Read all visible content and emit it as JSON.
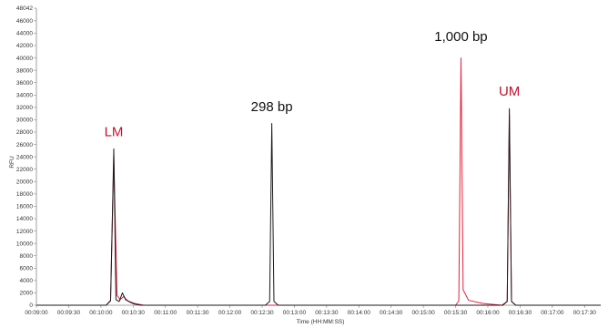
{
  "chart_data": {
    "type": "line",
    "xlabel": "Time (HH:MM:SS)",
    "ylabel": "RFU",
    "xlim": [
      "00:09:00",
      "00:17:45"
    ],
    "ylim": [
      0,
      48042
    ],
    "y_ticks": [
      0,
      2000,
      4000,
      6000,
      8000,
      10000,
      12000,
      14000,
      16000,
      18000,
      20000,
      22000,
      24000,
      26000,
      28000,
      30000,
      32000,
      34000,
      36000,
      38000,
      40000,
      42000,
      44000,
      46000,
      48042
    ],
    "x_ticks": [
      "00:09:00",
      "00:09:30",
      "00:10:00",
      "00:10:30",
      "00:11:00",
      "00:11:30",
      "00:12:00",
      "00:12:30",
      "00:13:00",
      "00:13:30",
      "00:14:00",
      "00:14:30",
      "00:15:00",
      "00:15:30",
      "00:16:00",
      "00:16:30",
      "00:17:00",
      "00:17:30"
    ],
    "grid": false,
    "colors": {
      "black_trace": "#1a1a1a",
      "red_trace": "#e8203a",
      "label_red": "#c8102e",
      "label_black": "#111111"
    },
    "series": [
      {
        "color": "black",
        "x": [
          "00:09:00",
          "00:10:05",
          "00:10:09",
          "00:10:12",
          "00:10:14",
          "00:10:17",
          "00:10:20",
          "00:10:23",
          "00:10:27",
          "00:10:31",
          "00:10:37",
          "00:12:33",
          "00:12:37",
          "00:12:39",
          "00:12:41",
          "00:12:45",
          "00:16:14",
          "00:16:18",
          "00:16:20",
          "00:16:22",
          "00:16:26",
          "00:17:45"
        ],
        "y": [
          0,
          0,
          800,
          25300,
          900,
          600,
          2000,
          900,
          500,
          200,
          0,
          0,
          600,
          29400,
          600,
          0,
          0,
          600,
          31800,
          600,
          0,
          0
        ]
      },
      {
        "color": "red",
        "x": [
          "00:09:00",
          "00:10:05",
          "00:10:09",
          "00:10:12",
          "00:10:15",
          "00:10:18",
          "00:10:21",
          "00:10:25",
          "00:10:31",
          "00:10:40",
          "00:15:30",
          "00:15:33",
          "00:15:35",
          "00:15:37",
          "00:15:42",
          "00:15:55",
          "00:16:13",
          "00:16:18",
          "00:16:20",
          "00:16:22",
          "00:16:26",
          "00:17:45"
        ],
        "y": [
          0,
          0,
          700,
          24000,
          1600,
          900,
          1400,
          700,
          300,
          0,
          0,
          700,
          40000,
          2500,
          800,
          300,
          0,
          600,
          30800,
          600,
          0,
          0
        ]
      }
    ],
    "annotations": [
      {
        "text": "LM",
        "x": "00:10:12",
        "y": 27300,
        "color": "#c8102e"
      },
      {
        "text": "298 bp",
        "x": "00:12:39",
        "y": 31400,
        "color": "#111111"
      },
      {
        "text": "1,000 bp",
        "x": "00:15:35",
        "y": 42700,
        "color": "#111111"
      },
      {
        "text": "UM",
        "x": "00:16:20",
        "y": 33900,
        "color": "#c8102e"
      }
    ]
  }
}
